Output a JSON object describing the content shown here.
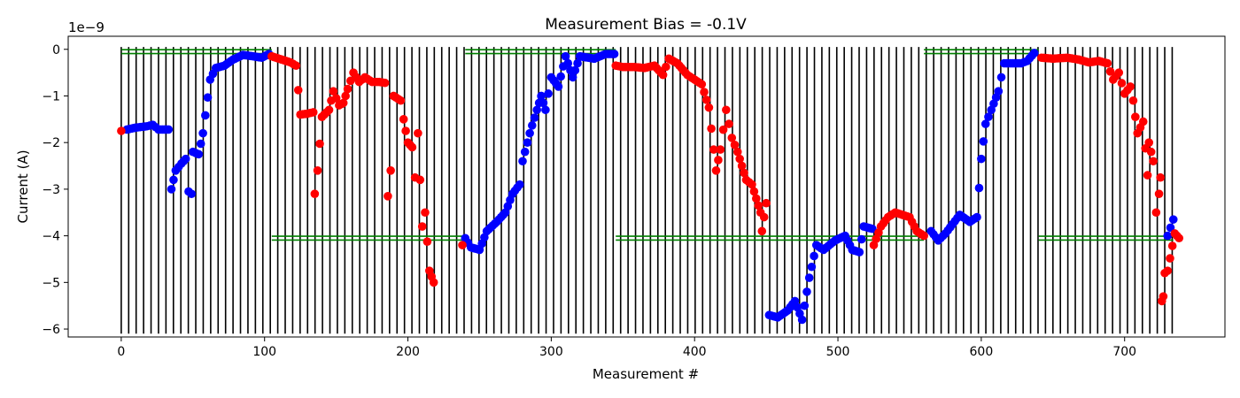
{
  "chart_data": {
    "type": "scatter",
    "title": "Measurement Bias = -0.1V",
    "xlabel": "Measurement #",
    "ylabel": "Current (A)",
    "y_offset_label": "1e−9",
    "xlim": [
      -37,
      770
    ],
    "ylim": [
      -6.17,
      0.28
    ],
    "x_ticks": [
      0,
      100,
      200,
      300,
      400,
      500,
      600,
      700
    ],
    "x_tick_labels": [
      "0",
      "100",
      "200",
      "300",
      "400",
      "500",
      "600",
      "700"
    ],
    "y_ticks": [
      0,
      -1,
      -2,
      -3,
      -4,
      -5,
      -6
    ],
    "y_tick_labels": [
      "0",
      "−1",
      "−2",
      "−3",
      "−4",
      "−5",
      "−6"
    ],
    "grid": false,
    "legend": "none",
    "vertical_lines": {
      "color": "#000000",
      "start": 0,
      "step": 5.2,
      "end": 734
    },
    "reference_segments": {
      "color": "#008000",
      "segments": [
        {
          "x0": 0,
          "x1": 105,
          "y": -0.05
        },
        {
          "x0": 105,
          "x1": 240,
          "y": -4.05
        },
        {
          "x0": 240,
          "x1": 345,
          "y": -0.05
        },
        {
          "x0": 345,
          "x1": 560,
          "y": -4.05
        },
        {
          "x0": 560,
          "x1": 640,
          "y": -0.05
        },
        {
          "x0": 640,
          "x1": 734,
          "y": -4.05
        }
      ]
    },
    "series": [
      {
        "color": "#0000ff",
        "keypoints": [
          [
            4,
            -1.72
          ],
          [
            10,
            -1.68
          ],
          [
            18,
            -1.65
          ],
          [
            22,
            -1.62
          ],
          [
            26,
            -1.72
          ],
          [
            33,
            -1.72
          ],
          [
            35,
            -3.0
          ],
          [
            38,
            -2.6
          ],
          [
            42,
            -2.45
          ],
          [
            45,
            -2.35
          ],
          [
            47,
            -3.05
          ],
          [
            49,
            -3.1
          ],
          [
            50,
            -2.2
          ],
          [
            54,
            -2.25
          ],
          [
            57,
            -1.8
          ],
          [
            62,
            -0.65
          ],
          [
            66,
            -0.4
          ],
          [
            72,
            -0.35
          ],
          [
            78,
            -0.22
          ],
          [
            85,
            -0.12
          ],
          [
            92,
            -0.15
          ],
          [
            98,
            -0.18
          ],
          [
            103,
            -0.1
          ],
          [
            240,
            -4.05
          ],
          [
            244,
            -4.25
          ],
          [
            250,
            -4.3
          ],
          [
            255,
            -3.9
          ],
          [
            262,
            -3.7
          ],
          [
            268,
            -3.5
          ],
          [
            273,
            -3.1
          ],
          [
            278,
            -2.9
          ],
          [
            280,
            -2.4
          ],
          [
            285,
            -1.8
          ],
          [
            290,
            -1.3
          ],
          [
            293,
            -1.0
          ],
          [
            296,
            -1.3
          ],
          [
            300,
            -0.6
          ],
          [
            305,
            -0.8
          ],
          [
            310,
            -0.15
          ],
          [
            315,
            -0.6
          ],
          [
            320,
            -0.15
          ],
          [
            330,
            -0.2
          ],
          [
            338,
            -0.1
          ],
          [
            344,
            -0.1
          ],
          [
            452,
            -5.7
          ],
          [
            458,
            -5.75
          ],
          [
            465,
            -5.6
          ],
          [
            470,
            -5.4
          ],
          [
            475,
            -5.8
          ],
          [
            480,
            -4.9
          ],
          [
            485,
            -4.2
          ],
          [
            490,
            -4.3
          ],
          [
            498,
            -4.1
          ],
          [
            505,
            -4.0
          ],
          [
            510,
            -4.3
          ],
          [
            515,
            -4.35
          ],
          [
            518,
            -3.8
          ],
          [
            524,
            -3.85
          ],
          [
            565,
            -3.9
          ],
          [
            570,
            -4.1
          ],
          [
            575,
            -3.95
          ],
          [
            580,
            -3.75
          ],
          [
            585,
            -3.55
          ],
          [
            592,
            -3.7
          ],
          [
            597,
            -3.6
          ],
          [
            600,
            -2.35
          ],
          [
            603,
            -1.6
          ],
          [
            607,
            -1.3
          ],
          [
            612,
            -0.9
          ],
          [
            616,
            -0.3
          ],
          [
            622,
            -0.3
          ],
          [
            628,
            -0.3
          ],
          [
            632,
            -0.25
          ],
          [
            637,
            -0.08
          ],
          [
            730,
            -4.0
          ],
          [
            734,
            -3.65
          ]
        ]
      },
      {
        "color": "#ff0000",
        "keypoints": [
          [
            0,
            -1.75
          ],
          [
            105,
            -0.15
          ],
          [
            112,
            -0.22
          ],
          [
            118,
            -0.28
          ],
          [
            122,
            -0.35
          ],
          [
            125,
            -1.4
          ],
          [
            130,
            -1.38
          ],
          [
            134,
            -1.35
          ],
          [
            135,
            -3.1
          ],
          [
            137,
            -2.6
          ],
          [
            140,
            -1.45
          ],
          [
            145,
            -1.3
          ],
          [
            148,
            -0.9
          ],
          [
            152,
            -1.2
          ],
          [
            155,
            -1.15
          ],
          [
            158,
            -0.85
          ],
          [
            162,
            -0.5
          ],
          [
            166,
            -0.7
          ],
          [
            170,
            -0.6
          ],
          [
            175,
            -0.7
          ],
          [
            180,
            -0.7
          ],
          [
            184,
            -0.72
          ],
          [
            186,
            -3.15
          ],
          [
            188,
            -2.6
          ],
          [
            190,
            -1.0
          ],
          [
            195,
            -1.1
          ],
          [
            197,
            -1.5
          ],
          [
            200,
            -2.0
          ],
          [
            203,
            -2.1
          ],
          [
            205,
            -2.75
          ],
          [
            207,
            -1.8
          ],
          [
            210,
            -3.8
          ],
          [
            212,
            -3.5
          ],
          [
            215,
            -4.75
          ],
          [
            218,
            -5.0
          ],
          [
            238,
            -4.2
          ],
          [
            345,
            -0.35
          ],
          [
            350,
            -0.38
          ],
          [
            358,
            -0.38
          ],
          [
            365,
            -0.4
          ],
          [
            372,
            -0.35
          ],
          [
            378,
            -0.55
          ],
          [
            382,
            -0.2
          ],
          [
            388,
            -0.3
          ],
          [
            395,
            -0.55
          ],
          [
            400,
            -0.65
          ],
          [
            405,
            -0.75
          ],
          [
            410,
            -1.25
          ],
          [
            415,
            -2.6
          ],
          [
            418,
            -2.15
          ],
          [
            422,
            -1.3
          ],
          [
            426,
            -1.9
          ],
          [
            430,
            -2.2
          ],
          [
            433,
            -2.5
          ],
          [
            436,
            -2.8
          ],
          [
            440,
            -2.9
          ],
          [
            443,
            -3.2
          ],
          [
            446,
            -3.5
          ],
          [
            447,
            -3.9
          ],
          [
            450,
            -3.3
          ],
          [
            525,
            -4.2
          ],
          [
            530,
            -3.8
          ],
          [
            535,
            -3.6
          ],
          [
            540,
            -3.5
          ],
          [
            545,
            -3.55
          ],
          [
            550,
            -3.6
          ],
          [
            555,
            -3.9
          ],
          [
            560,
            -4.0
          ],
          [
            642,
            -0.18
          ],
          [
            650,
            -0.2
          ],
          [
            660,
            -0.18
          ],
          [
            668,
            -0.22
          ],
          [
            675,
            -0.28
          ],
          [
            682,
            -0.25
          ],
          [
            688,
            -0.3
          ],
          [
            692,
            -0.65
          ],
          [
            696,
            -0.5
          ],
          [
            700,
            -0.95
          ],
          [
            704,
            -0.8
          ],
          [
            706,
            -1.1
          ],
          [
            709,
            -1.8
          ],
          [
            713,
            -1.55
          ],
          [
            716,
            -2.7
          ],
          [
            717,
            -2.0
          ],
          [
            720,
            -2.4
          ],
          [
            722,
            -3.5
          ],
          [
            724,
            -3.1
          ],
          [
            725,
            -2.75
          ],
          [
            726,
            -5.4
          ],
          [
            727,
            -5.3
          ],
          [
            728,
            -4.8
          ],
          [
            730,
            -4.75
          ],
          [
            735,
            -3.95
          ],
          [
            738,
            -4.05
          ]
        ]
      }
    ]
  }
}
